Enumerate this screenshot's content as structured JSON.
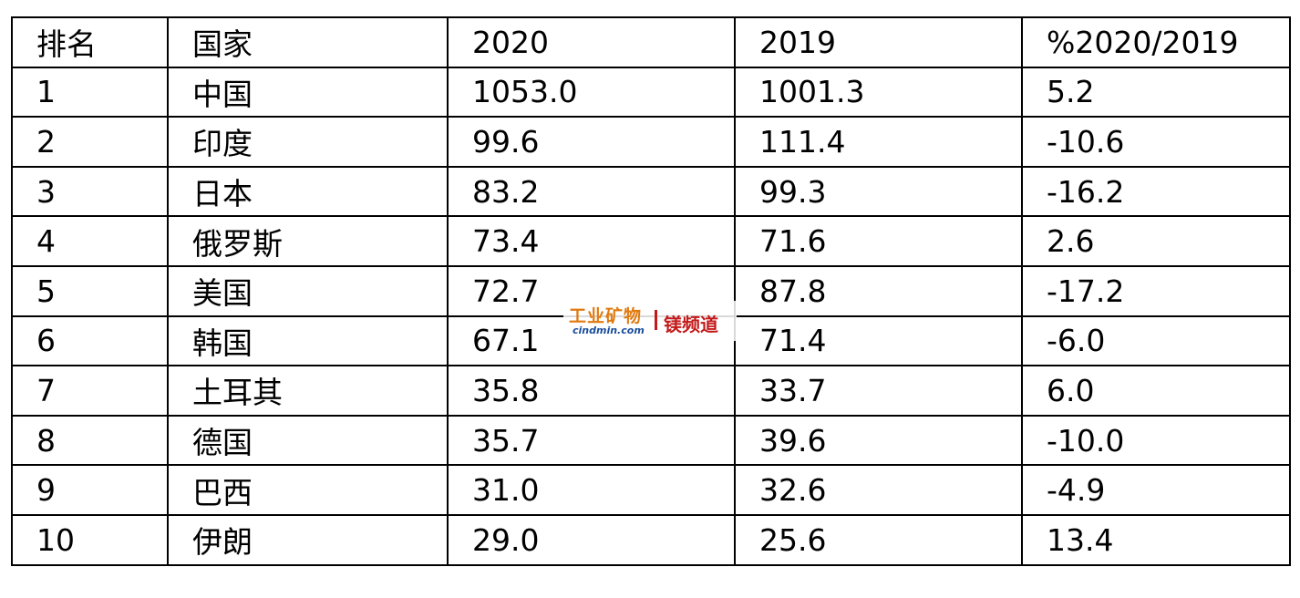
{
  "table": {
    "header": [
      "排名",
      "国家",
      "2020",
      "2019",
      "%2020/2019"
    ],
    "rows": [
      [
        "1",
        "中国",
        "1053.0",
        "1001.3",
        "5.2"
      ],
      [
        "2",
        "印度",
        "99.6",
        "111.4",
        "-10.6"
      ],
      [
        "3",
        "日本",
        "83.2",
        "99.3",
        "-16.2"
      ],
      [
        "4",
        "俄罗斯",
        "73.4",
        "71.6",
        "2.6"
      ],
      [
        "5",
        "美国",
        "72.7",
        "87.8",
        "-17.2"
      ],
      [
        "6",
        "韩国",
        "67.1",
        "71.4",
        "-6.0"
      ],
      [
        "7",
        "土耳其",
        "35.8",
        "33.7",
        "6.0"
      ],
      [
        "8",
        "德国",
        "35.7",
        "39.6",
        "-10.0"
      ],
      [
        "9",
        "巴西",
        "31.0",
        "32.6",
        "-4.9"
      ],
      [
        "10",
        "伊朗",
        "29.0",
        "25.6",
        "13.4"
      ]
    ]
  },
  "watermark": {
    "brand": "工业矿物",
    "site": "cindmin.com",
    "channel": "镁频道"
  }
}
